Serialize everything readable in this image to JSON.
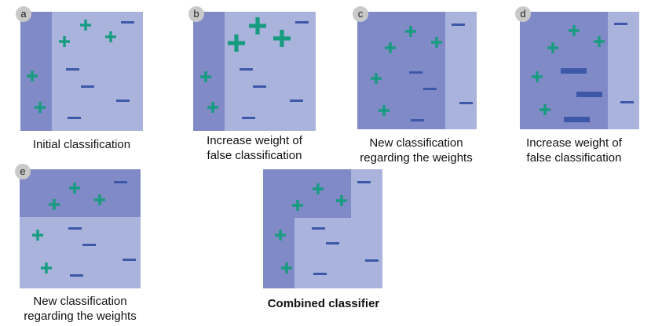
{
  "colors": {
    "light_region": "#aab3dc",
    "dark_region": "#7f8ac6",
    "plus": "#179c80",
    "minus": "#3d58a8",
    "badge": "#c9c9c9"
  },
  "panels": [
    {
      "id": "a",
      "badge": "a",
      "caption_lines": [
        "Initial classification"
      ]
    },
    {
      "id": "b",
      "badge": "b",
      "caption_lines": [
        "Increase weight of",
        "false classification"
      ]
    },
    {
      "id": "c",
      "badge": "c",
      "caption_lines": [
        "New classification",
        "regarding the weights"
      ]
    },
    {
      "id": "d",
      "badge": "d",
      "caption_lines": [
        "Increase weight of",
        "false classification"
      ]
    },
    {
      "id": "e",
      "badge": "e",
      "caption_lines": [
        "New classification",
        "regarding the weights"
      ]
    },
    {
      "id": "combined",
      "badge": "",
      "caption_lines": [
        "Combined classifier"
      ]
    }
  ]
}
